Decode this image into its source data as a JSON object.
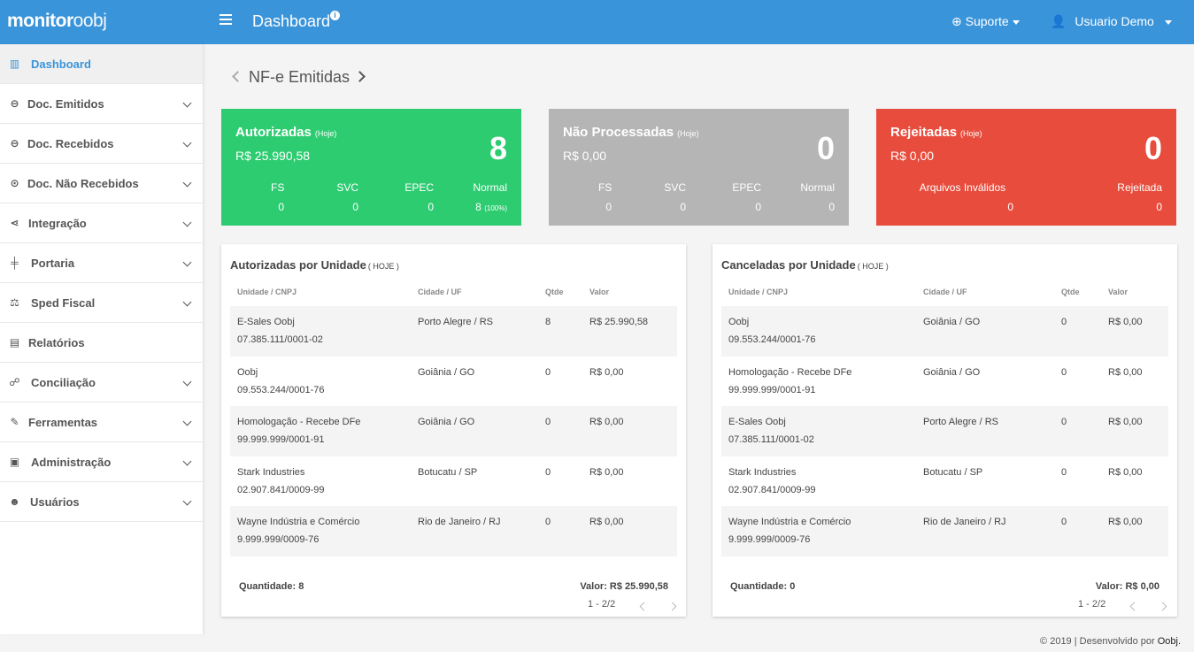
{
  "header": {
    "logo_bold": "monitor",
    "logo_thin": "oobj",
    "title": "Dashboard",
    "info_glyph": "i",
    "support_label": "Suporte",
    "user_label": "Usuario Demo"
  },
  "sidebar": {
    "items": [
      {
        "label": "Dashboard",
        "icon": "bar-chart-icon",
        "glyph": "▥"
      },
      {
        "label": "Doc. Emitidos",
        "icon": "arrow-circle-right-icon",
        "glyph": "⊖"
      },
      {
        "label": "Doc. Recebidos",
        "icon": "arrow-circle-left-icon",
        "glyph": "⊖"
      },
      {
        "label": "Doc. Não Recebidos",
        "icon": "dot-circle-icon",
        "glyph": "⊙"
      },
      {
        "label": "Integração",
        "icon": "share-icon",
        "glyph": "⋖"
      },
      {
        "label": "Portaria",
        "icon": "signpost-icon",
        "glyph": "╪"
      },
      {
        "label": "Sped Fiscal",
        "icon": "balance-scale-icon",
        "glyph": "⚖"
      },
      {
        "label": "Relatórios",
        "icon": "file-icon",
        "glyph": "▤"
      },
      {
        "label": "Conciliação",
        "icon": "handshake-icon",
        "glyph": "☍"
      },
      {
        "label": "Ferramentas",
        "icon": "wrench-icon",
        "glyph": "✎"
      },
      {
        "label": "Administração",
        "icon": "briefcase-icon",
        "glyph": "▣"
      },
      {
        "label": "Usuários",
        "icon": "users-icon",
        "glyph": "☻"
      }
    ]
  },
  "main": {
    "title": "NF-e Emitidas"
  },
  "cards": {
    "autorizadas": {
      "title": "Autorizadas",
      "tag": "(Hoje)",
      "value": "R$ 25.990,58",
      "count": "8",
      "labels": [
        "FS",
        "SVC",
        "EPEC",
        "Normal"
      ],
      "values": [
        "0",
        "0",
        "0",
        "8"
      ],
      "normal_pct": "(100%)"
    },
    "nao_processadas": {
      "title": "Não Processadas",
      "tag": "(Hoje)",
      "value": "R$ 0,00",
      "count": "0",
      "labels": [
        "FS",
        "SVC",
        "EPEC",
        "Normal"
      ],
      "values": [
        "0",
        "0",
        "0",
        "0"
      ]
    },
    "rejeitadas": {
      "title": "Rejeitadas",
      "tag": "(Hoje)",
      "value": "R$ 0,00",
      "count": "0",
      "labels": [
        "Arquivos Inválidos",
        "Rejeitada"
      ],
      "values": [
        "0",
        "0"
      ]
    }
  },
  "autorizadas_panel": {
    "title": "Autorizadas por Unidade",
    "tag": "( HOJE )",
    "headers": [
      "Unidade / CNPJ",
      "Cidade / UF",
      "Qtde",
      "Valor"
    ],
    "rows": [
      {
        "unidade": "E-Sales Oobj",
        "cnpj": "07.385.111/0001-02",
        "cidade": "Porto Alegre / RS",
        "qtde": "8",
        "valor": "R$ 25.990,58"
      },
      {
        "unidade": "Oobj",
        "cnpj": "09.553.244/0001-76",
        "cidade": "Goiânia / GO",
        "qtde": "0",
        "valor": "R$ 0,00"
      },
      {
        "unidade": "Homologação - Recebe DFe",
        "cnpj": "99.999.999/0001-91",
        "cidade": "Goiânia / GO",
        "qtde": "0",
        "valor": "R$ 0,00"
      },
      {
        "unidade": "Stark Industries",
        "cnpj": "02.907.841/0009-99",
        "cidade": "Botucatu / SP",
        "qtde": "0",
        "valor": "R$ 0,00"
      },
      {
        "unidade": "Wayne Indústria e Comércio",
        "cnpj": "9.999.999/0009-76",
        "cidade": "Rio de Janeiro / RJ",
        "qtde": "0",
        "valor": "R$ 0,00"
      }
    ],
    "quantidade": "Quantidade: 8",
    "valor": "Valor: R$ 25.990,58",
    "pager": "1 - 2/2"
  },
  "canceladas_panel": {
    "title": "Canceladas por Unidade",
    "tag": "( HOJE )",
    "headers": [
      "Unidade / CNPJ",
      "Cidade / UF",
      "Qtde",
      "Valor"
    ],
    "rows": [
      {
        "unidade": "Oobj",
        "cnpj": "09.553.244/0001-76",
        "cidade": "Goiânia / GO",
        "qtde": "0",
        "valor": "R$ 0,00"
      },
      {
        "unidade": "Homologação - Recebe DFe",
        "cnpj": "99.999.999/0001-91",
        "cidade": "Goiânia / GO",
        "qtde": "0",
        "valor": "R$ 0,00"
      },
      {
        "unidade": "E-Sales Oobj",
        "cnpj": "07.385.111/0001-02",
        "cidade": "Porto Alegre / RS",
        "qtde": "0",
        "valor": "R$ 0,00"
      },
      {
        "unidade": "Stark Industries",
        "cnpj": "02.907.841/0009-99",
        "cidade": "Botucatu / SP",
        "qtde": "0",
        "valor": "R$ 0,00"
      },
      {
        "unidade": "Wayne Indústria e Comércio",
        "cnpj": "9.999.999/0009-76",
        "cidade": "Rio de Janeiro / RJ",
        "qtde": "0",
        "valor": "R$ 0,00"
      }
    ],
    "quantidade": "Quantidade: 0",
    "valor": "Valor: R$ 0,00",
    "pager": "1 - 2/2"
  },
  "footer": {
    "text": "© 2019 | Desenvolvido por",
    "link": "Oobj."
  },
  "colors": {
    "header": "#3a94d9",
    "green": "#2ecc71",
    "gray": "#b5b5b5",
    "red": "#e74c3c"
  }
}
